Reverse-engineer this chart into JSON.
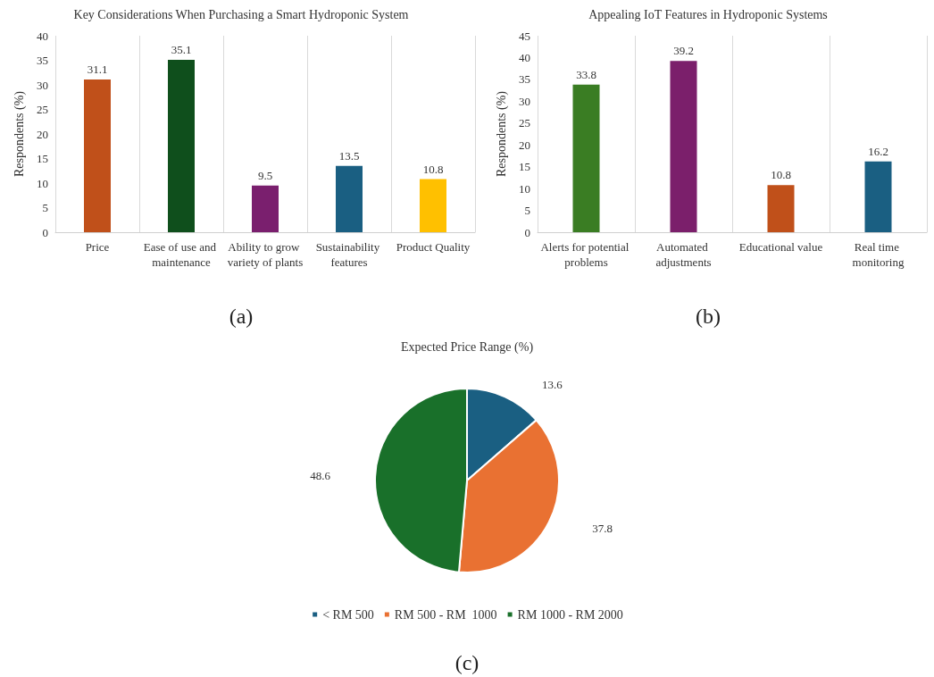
{
  "chart_data": [
    {
      "type": "bar",
      "title": "Key Considerations When Purchasing a Smart Hydroponic System",
      "ylabel": "Respondents (%)",
      "categories": [
        "Price",
        "Ease of use and maintenance",
        "Ability to grow variety of plants",
        "Sustainability features",
        "Product Quality"
      ],
      "values": [
        31.1,
        35.1,
        9.5,
        13.5,
        10.8
      ],
      "colors": [
        "#c0501a",
        "#0f4f1c",
        "#7a1f6e",
        "#1a5f82",
        "#ffc000"
      ],
      "ylim": [
        0,
        40
      ],
      "yticks": [
        0,
        5,
        10,
        15,
        20,
        25,
        30,
        35,
        40
      ],
      "grid": "x",
      "data_labels": true,
      "annotations": [
        "(a)"
      ]
    },
    {
      "type": "bar",
      "title": "Appealing IoT Features in Hydroponic Systems",
      "ylabel": "Respondents (%)",
      "categories": [
        "Alerts for potential problems",
        "Automated adjustments",
        "Educational value",
        "Real time monitoring"
      ],
      "values": [
        33.8,
        39.2,
        10.8,
        16.2
      ],
      "colors": [
        "#3a7d23",
        "#7b1f6b",
        "#c0501a",
        "#1a5f82"
      ],
      "ylim": [
        0,
        45
      ],
      "yticks": [
        0,
        5,
        10,
        15,
        20,
        25,
        30,
        35,
        40,
        45
      ],
      "grid": "x",
      "data_labels": true,
      "annotations": [
        "(b)"
      ]
    },
    {
      "type": "pie",
      "title": "Expected Price Range (%)",
      "categories": [
        "< RM 500",
        "RM 500 - RM  1000",
        "RM 1000 - RM 2000"
      ],
      "values": [
        13.6,
        37.8,
        48.6
      ],
      "colors": [
        "#1a5f82",
        "#e97132",
        "#19702a"
      ],
      "legend": "bottom",
      "data_labels": true,
      "annotations": [
        "(c)"
      ]
    }
  ]
}
